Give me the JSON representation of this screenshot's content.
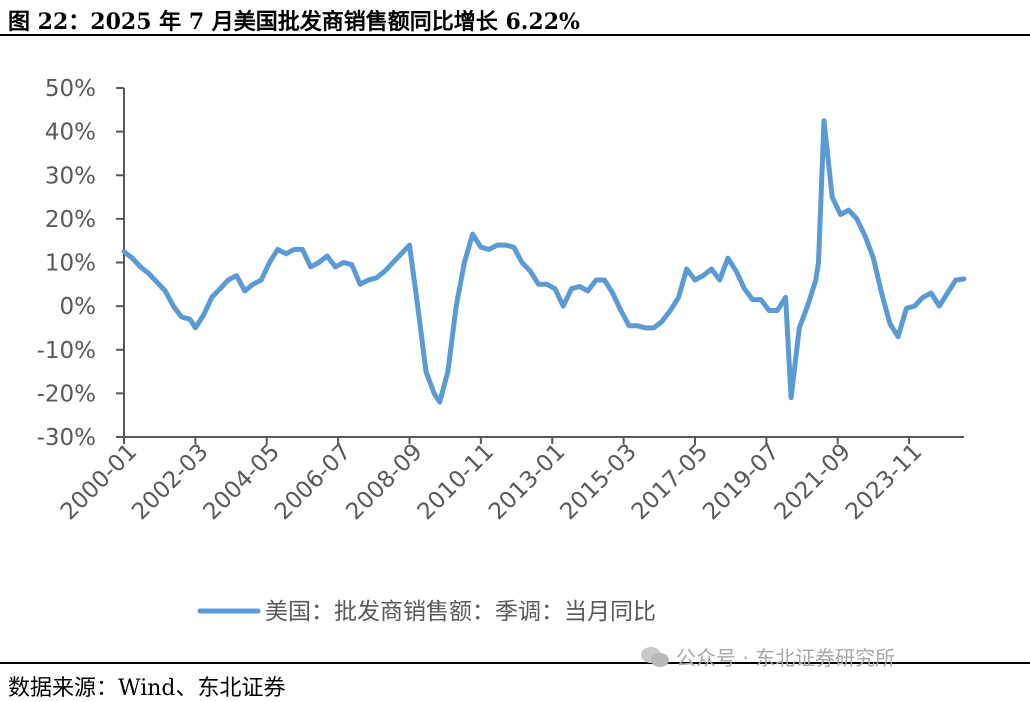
{
  "figure": {
    "title": "图 22：2025 年 7 月美国批发商销售额同比增长 6.22%",
    "source": "数据来源：Wind、东北证券",
    "watermark": "公众号 · 东北证券研究所"
  },
  "colors": {
    "series": "#5b9bd5",
    "axis": "#595959",
    "rule": "#000000"
  },
  "chart_data": {
    "type": "line",
    "title": "",
    "xlabel": "",
    "ylabel": "",
    "ylim": [
      -0.3,
      0.5
    ],
    "y_ticks": [
      "50%",
      "40%",
      "30%",
      "20%",
      "10%",
      "0%",
      "-10%",
      "-20%",
      "-30%"
    ],
    "x_ticks": [
      "2000-01",
      "2002-03",
      "2004-05",
      "2006-07",
      "2008-09",
      "2010-11",
      "2013-01",
      "2015-03",
      "2017-05",
      "2019-07",
      "2021-09",
      "2023-11"
    ],
    "x_range": [
      "2000-01",
      "2025-07"
    ],
    "grid": false,
    "legend": "bottom",
    "series": [
      {
        "name": "美国：批发商销售额：季调：当月同比",
        "points": [
          [
            "2000-01",
            0.125
          ],
          [
            "2000-04",
            0.11
          ],
          [
            "2000-07",
            0.09
          ],
          [
            "2000-10",
            0.075
          ],
          [
            "2001-01",
            0.055
          ],
          [
            "2001-04",
            0.035
          ],
          [
            "2001-07",
            0.0
          ],
          [
            "2001-10",
            -0.025
          ],
          [
            "2002-01",
            -0.03
          ],
          [
            "2002-03",
            -0.05
          ],
          [
            "2002-06",
            -0.02
          ],
          [
            "2002-09",
            0.02
          ],
          [
            "2002-12",
            0.04
          ],
          [
            "2003-03",
            0.06
          ],
          [
            "2003-06",
            0.07
          ],
          [
            "2003-09",
            0.035
          ],
          [
            "2003-12",
            0.05
          ],
          [
            "2004-03",
            0.06
          ],
          [
            "2004-06",
            0.1
          ],
          [
            "2004-09",
            0.13
          ],
          [
            "2004-12",
            0.12
          ],
          [
            "2005-03",
            0.13
          ],
          [
            "2005-06",
            0.13
          ],
          [
            "2005-09",
            0.09
          ],
          [
            "2005-12",
            0.1
          ],
          [
            "2006-03",
            0.115
          ],
          [
            "2006-06",
            0.09
          ],
          [
            "2006-09",
            0.1
          ],
          [
            "2006-12",
            0.095
          ],
          [
            "2007-03",
            0.05
          ],
          [
            "2007-06",
            0.06
          ],
          [
            "2007-09",
            0.065
          ],
          [
            "2007-12",
            0.08
          ],
          [
            "2008-03",
            0.1
          ],
          [
            "2008-06",
            0.12
          ],
          [
            "2008-09",
            0.14
          ],
          [
            "2008-12",
            0.0
          ],
          [
            "2009-03",
            -0.15
          ],
          [
            "2009-06",
            -0.2
          ],
          [
            "2009-08",
            -0.22
          ],
          [
            "2009-11",
            -0.15
          ],
          [
            "2010-02",
            0.0
          ],
          [
            "2010-05",
            0.1
          ],
          [
            "2010-08",
            0.165
          ],
          [
            "2010-11",
            0.135
          ],
          [
            "2011-02",
            0.13
          ],
          [
            "2011-05",
            0.14
          ],
          [
            "2011-08",
            0.14
          ],
          [
            "2011-11",
            0.135
          ],
          [
            "2012-02",
            0.1
          ],
          [
            "2012-05",
            0.08
          ],
          [
            "2012-08",
            0.05
          ],
          [
            "2012-11",
            0.05
          ],
          [
            "2013-02",
            0.04
          ],
          [
            "2013-05",
            0.0
          ],
          [
            "2013-08",
            0.04
          ],
          [
            "2013-11",
            0.045
          ],
          [
            "2014-02",
            0.035
          ],
          [
            "2014-05",
            0.06
          ],
          [
            "2014-08",
            0.06
          ],
          [
            "2014-11",
            0.03
          ],
          [
            "2015-02",
            -0.01
          ],
          [
            "2015-05",
            -0.045
          ],
          [
            "2015-08",
            -0.045
          ],
          [
            "2015-11",
            -0.05
          ],
          [
            "2016-02",
            -0.05
          ],
          [
            "2016-05",
            -0.035
          ],
          [
            "2016-08",
            -0.01
          ],
          [
            "2016-11",
            0.02
          ],
          [
            "2017-02",
            0.085
          ],
          [
            "2017-05",
            0.06
          ],
          [
            "2017-08",
            0.07
          ],
          [
            "2017-11",
            0.085
          ],
          [
            "2018-02",
            0.06
          ],
          [
            "2018-05",
            0.11
          ],
          [
            "2018-08",
            0.08
          ],
          [
            "2018-11",
            0.04
          ],
          [
            "2019-02",
            0.015
          ],
          [
            "2019-05",
            0.015
          ],
          [
            "2019-08",
            -0.01
          ],
          [
            "2019-11",
            -0.01
          ],
          [
            "2020-02",
            0.02
          ],
          [
            "2020-04",
            -0.21
          ],
          [
            "2020-07",
            -0.05
          ],
          [
            "2020-10",
            0.0
          ],
          [
            "2021-01",
            0.06
          ],
          [
            "2021-02",
            0.1
          ],
          [
            "2021-04",
            0.425
          ],
          [
            "2021-07",
            0.25
          ],
          [
            "2021-10",
            0.21
          ],
          [
            "2022-01",
            0.22
          ],
          [
            "2022-04",
            0.2
          ],
          [
            "2022-07",
            0.16
          ],
          [
            "2022-10",
            0.11
          ],
          [
            "2023-01",
            0.03
          ],
          [
            "2023-04",
            -0.04
          ],
          [
            "2023-07",
            -0.07
          ],
          [
            "2023-10",
            -0.005
          ],
          [
            "2024-01",
            0.0
          ],
          [
            "2024-04",
            0.02
          ],
          [
            "2024-07",
            0.03
          ],
          [
            "2024-10",
            0.0
          ],
          [
            "2025-01",
            0.03
          ],
          [
            "2025-04",
            0.06
          ],
          [
            "2025-07",
            0.0622
          ]
        ]
      }
    ]
  }
}
